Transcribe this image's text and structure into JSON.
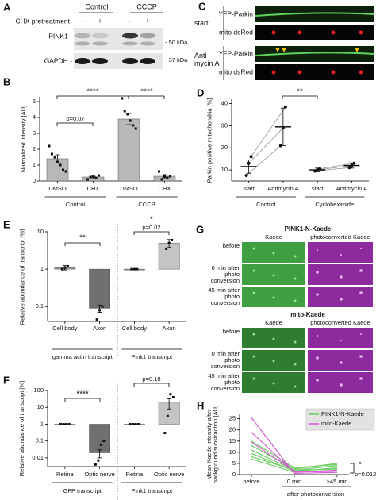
{
  "figure": {
    "A": {
      "letter": "A",
      "groups": [
        "Control",
        "CCCP"
      ],
      "treatment": "CHX pretreatment",
      "signs": [
        "-",
        "+",
        "-",
        "+"
      ],
      "blots": [
        {
          "name": "PINK1 -",
          "marker": "- 50 kDa"
        },
        {
          "name": "GAPDH -",
          "marker": "- 37 kDa"
        }
      ]
    },
    "C": {
      "letter": "C",
      "rows": [
        {
          "condition": "start",
          "channels": [
            "YFP-Parkin",
            "mito dsRed"
          ]
        },
        {
          "condition": "Anti mycin A",
          "channels": [
            "YFP-Parkin",
            "mito dsRed"
          ]
        }
      ]
    },
    "G": {
      "letter": "G",
      "blocks": [
        {
          "title": "PINK1-N-Kaede",
          "columns": [
            "Kaede",
            "photoconverted Kaede"
          ],
          "rows": [
            "before",
            "0 min after photo conversion",
            "45 min after photo conversion"
          ]
        },
        {
          "title": "mito-Kaede",
          "columns": [
            "Kaede",
            "photoconverted Kaede"
          ],
          "rows": [
            "before",
            "0 min after photo conversion",
            "45 min after photo conversion"
          ]
        }
      ]
    }
  },
  "chart_data": [
    {
      "type": "bar",
      "panel": "B",
      "ylabel": "Normalized intensity [AU]",
      "categories": [
        "DMSO",
        "CHX",
        "DMSO",
        "CHX"
      ],
      "groups": [
        "Control",
        "CCCP"
      ],
      "values": [
        1.4,
        0.25,
        3.9,
        0.3
      ],
      "errors": [
        0.25,
        0.05,
        0.35,
        0.1
      ],
      "points": [
        [
          2.2,
          1.7,
          1.5,
          1.2,
          1.0,
          0.7,
          0.6
        ],
        [
          0.1,
          0.25,
          0.3,
          0.2,
          0.35
        ],
        [
          5.2,
          4.4,
          4.2,
          3.8,
          3.5,
          3.3
        ],
        [
          0.6,
          0.1,
          0.3,
          0.2,
          0.3
        ]
      ],
      "color": "#b8b8b8",
      "ylim": [
        0,
        5.3
      ],
      "yticks": [
        0,
        1,
        2,
        3,
        4,
        5
      ],
      "annotations": [
        "****",
        "p=0.07",
        "****"
      ]
    },
    {
      "type": "dot",
      "panel": "D",
      "ylabel": "Parkin positive mitochondria [%]",
      "categories": [
        "start",
        "Antimycin A",
        "start",
        "Antimycin A"
      ],
      "groups": [
        "Control",
        "Cycloheximide"
      ],
      "values": [
        11.5,
        29.5,
        10,
        12
      ],
      "errors": [
        3,
        8.5,
        0.8,
        1.2
      ],
      "points": [
        [
          7.5,
          13,
          16
        ],
        [
          21,
          29,
          38.5
        ],
        [
          9.5,
          10,
          10.5
        ],
        [
          11,
          12,
          13
        ]
      ],
      "color": "#000000",
      "ylim": [
        5,
        42
      ],
      "yticks": [
        10,
        20,
        30,
        40
      ],
      "annotations": [
        "**"
      ]
    },
    {
      "type": "bar",
      "panel": "E",
      "ylabel": "Relative abundance of transcript [%]",
      "log": true,
      "bar_base": 1,
      "categories": [
        "Cell body",
        "Axon",
        "Cell body",
        "Axon"
      ],
      "groups": [
        "gamma actin transcript",
        "Pink1 transcript"
      ],
      "values": [
        1.1,
        0.09,
        1,
        5
      ],
      "errors": [
        0.15,
        0.02,
        0.02,
        1.2
      ],
      "points": [
        [
          1.0,
          1.1,
          1.2
        ],
        [
          0.045,
          0.08,
          0.1
        ],
        [
          1,
          1,
          1
        ],
        [
          3.5,
          5,
          6
        ]
      ],
      "colors": [
        "#9a9a9a",
        "#707070",
        "#9a9a9a",
        "#c4c4c4"
      ],
      "ylim": [
        0.04,
        10
      ],
      "yticks": [
        0.1,
        1,
        10
      ],
      "annotations": [
        "**",
        "*",
        "p=0.02"
      ]
    },
    {
      "type": "bar",
      "panel": "F",
      "ylabel": "Relative abundance of transcript [%]",
      "log": true,
      "bar_base": 1,
      "categories": [
        "Retina",
        "Optic nerve",
        "Retina",
        "Optic nerve"
      ],
      "groups": [
        "GFP transcript",
        "Pink1 transcript"
      ],
      "values": [
        1,
        0.02,
        1,
        20
      ],
      "errors": [
        0.02,
        0.01,
        0.02,
        12
      ],
      "points": [
        [
          1,
          1,
          1,
          1
        ],
        [
          0.004,
          0.007,
          0.06,
          0.1
        ],
        [
          1,
          1,
          1,
          1
        ],
        [
          0.3,
          3,
          60,
          40
        ]
      ],
      "colors": [
        "#9a9a9a",
        "#707070",
        "#9a9a9a",
        "#c4c4c4"
      ],
      "ylim": [
        0.003,
        100
      ],
      "yticks": [
        0.01,
        0.1,
        1,
        10,
        100
      ],
      "annotations": [
        "****",
        "p=0.18"
      ]
    },
    {
      "type": "line",
      "panel": "H",
      "ylabel": "Mean Kaede intensity after background substraction [AU]",
      "categories": [
        "before",
        "0 min",
        ">45 min"
      ],
      "xlabel": "after photoconversion",
      "series": [
        {
          "name": "PINK1-N-Kaede",
          "color": "#6ecb63",
          "values": [
            [
              13,
              2.5,
              5
            ],
            [
              11,
              2,
              4
            ],
            [
              9.5,
              1.5,
              3
            ],
            [
              8,
              2,
              2.5
            ],
            [
              7,
              1,
              2
            ],
            [
              15,
              3,
              4.5
            ]
          ]
        },
        {
          "name": "mito-Kaede",
          "color": "#d65fd6",
          "values": [
            [
              25.5,
              0.5,
              1
            ],
            [
              19,
              1,
              2
            ],
            [
              14.5,
              1.5,
              1
            ]
          ]
        }
      ],
      "ylim": [
        0,
        27
      ],
      "yticks": [
        0,
        5,
        10,
        15,
        20,
        25
      ],
      "legend": "upper right",
      "annotations": [
        "*",
        "p=0.012"
      ]
    }
  ]
}
